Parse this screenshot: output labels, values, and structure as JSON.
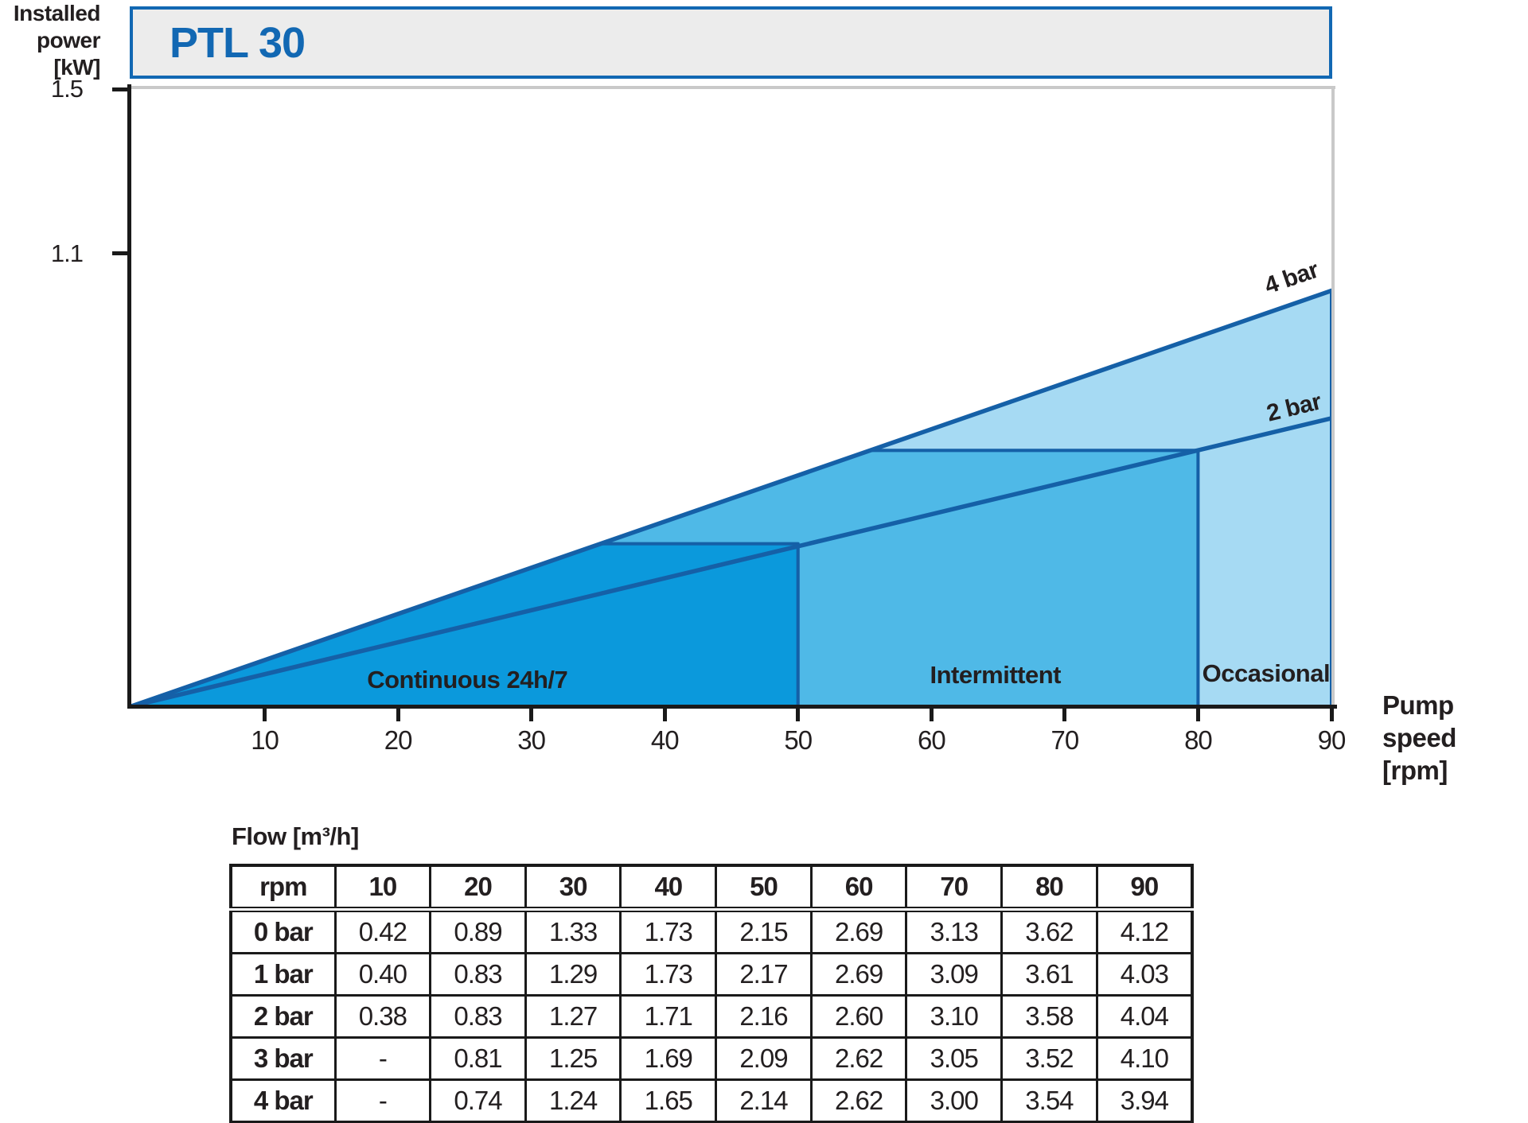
{
  "title": "PTL 30",
  "y_axis": {
    "label_lines": [
      "Installed",
      "power",
      "[kW]"
    ],
    "ticks": [
      1.5,
      1.1
    ]
  },
  "x_axis": {
    "label_lines": [
      "Pump",
      "speed [rpm]"
    ],
    "ticks": [
      10,
      20,
      30,
      40,
      50,
      60,
      70,
      80,
      90
    ]
  },
  "colors": {
    "text": "#231f20",
    "axis": "#1a1a1a",
    "line": "#1560a7",
    "title_blue": "#1268b3",
    "title_box_bg": "#ececec",
    "frame_gray": "#c9c9c9",
    "region_continuous": "#0b99dc",
    "region_intermittent": "#4fb9e7",
    "region_occasional": "#a6daf3"
  },
  "chart_data": {
    "type": "area",
    "title": "PTL 30 installed power vs pump speed",
    "xlabel": "Pump speed [rpm]",
    "ylabel": "Installed power [kW]",
    "xlim": [
      0,
      90
    ],
    "ylim": [
      0,
      1.5
    ],
    "grid": false,
    "x_ticks": [
      10,
      20,
      30,
      40,
      50,
      60,
      70,
      80,
      90
    ],
    "y_ticks": [
      1.5,
      1.1
    ],
    "lines": [
      {
        "name": "4 bar",
        "points": [
          [
            0,
            0
          ],
          [
            90,
            1.01
          ]
        ]
      },
      {
        "name": "2 bar",
        "points": [
          [
            0,
            0
          ],
          [
            90,
            0.7
          ]
        ]
      }
    ],
    "regions": [
      {
        "name": "Continuous 24h/7",
        "color_key": "region_continuous",
        "polygon": [
          [
            0,
            0
          ],
          [
            35.2,
            0.395
          ],
          [
            50,
            0.395
          ],
          [
            50,
            0
          ]
        ]
      },
      {
        "name": "Intermittent",
        "color_key": "region_intermittent",
        "polygon": [
          [
            35.2,
            0.395
          ],
          [
            55.45,
            0.622
          ],
          [
            80,
            0.622
          ],
          [
            80,
            0
          ],
          [
            50,
            0
          ],
          [
            50,
            0.395
          ]
        ]
      },
      {
        "name": "Occasional",
        "color_key": "region_occasional",
        "polygon": [
          [
            55.45,
            0.622
          ],
          [
            90,
            1.01
          ],
          [
            90,
            0
          ],
          [
            80,
            0
          ],
          [
            80,
            0.622
          ]
        ]
      }
    ],
    "region_labels": [
      {
        "text": "Continuous 24h/7",
        "rpm": 25.2,
        "kw": 0.064
      },
      {
        "text": "Intermittent",
        "rpm": 64.8,
        "kw": 0.075
      },
      {
        "text": "Occasional",
        "rpm": 85.1,
        "kw": 0.079
      }
    ],
    "line_labels": [
      {
        "text": "4 bar",
        "rpm": 87.0,
        "kw": 1.04,
        "angle": -19
      },
      {
        "text": "2 bar",
        "rpm": 87.2,
        "kw": 0.725,
        "angle": -13.5
      }
    ]
  },
  "flow_table": {
    "title": "Flow [m³/h]",
    "header": [
      "rpm",
      "10",
      "20",
      "30",
      "40",
      "50",
      "60",
      "70",
      "80",
      "90"
    ],
    "rows": [
      {
        "label": "0 bar",
        "values": [
          "0.42",
          "0.89",
          "1.33",
          "1.73",
          "2.15",
          "2.69",
          "3.13",
          "3.62",
          "4.12"
        ]
      },
      {
        "label": "1 bar",
        "values": [
          "0.40",
          "0.83",
          "1.29",
          "1.73",
          "2.17",
          "2.69",
          "3.09",
          "3.61",
          "4.03"
        ]
      },
      {
        "label": "2 bar",
        "values": [
          "0.38",
          "0.83",
          "1.27",
          "1.71",
          "2.16",
          "2.60",
          "3.10",
          "3.58",
          "4.04"
        ]
      },
      {
        "label": "3 bar",
        "values": [
          "-",
          "0.81",
          "1.25",
          "1.69",
          "2.09",
          "2.62",
          "3.05",
          "3.52",
          "4.10"
        ]
      },
      {
        "label": "4 bar",
        "values": [
          "-",
          "0.74",
          "1.24",
          "1.65",
          "2.14",
          "2.62",
          "3.00",
          "3.54",
          "3.94"
        ]
      }
    ]
  }
}
